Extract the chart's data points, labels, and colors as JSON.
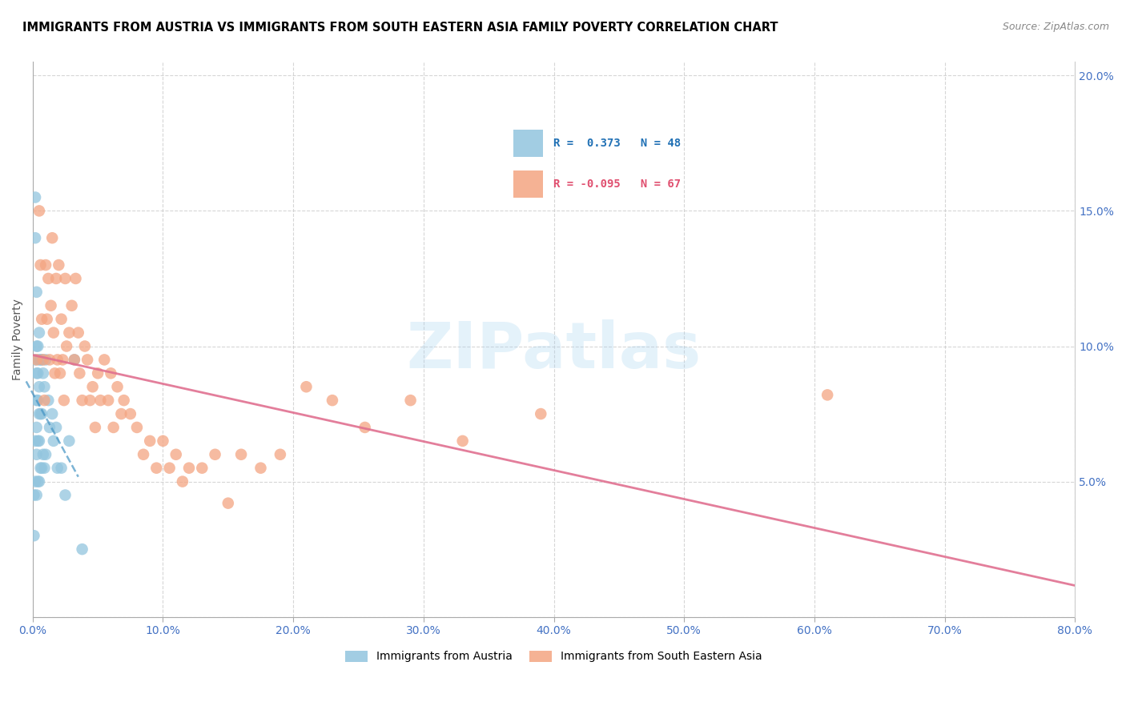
{
  "title": "IMMIGRANTS FROM AUSTRIA VS IMMIGRANTS FROM SOUTH EASTERN ASIA FAMILY POVERTY CORRELATION CHART",
  "source": "Source: ZipAtlas.com",
  "ylabel": "Family Poverty",
  "xlim": [
    0.0,
    0.8
  ],
  "ylim": [
    0.0,
    0.205
  ],
  "austria_color": "#92c5de",
  "austria_line_color": "#4393c3",
  "sea_color": "#f4a582",
  "sea_line_color": "#d6604d",
  "austria_R": 0.373,
  "austria_N": 48,
  "sea_R": -0.095,
  "sea_N": 67,
  "legend_label_austria": "Immigrants from Austria",
  "legend_label_sea": "Immigrants from South Eastern Asia",
  "austria_x": [
    0.001,
    0.001,
    0.002,
    0.002,
    0.002,
    0.002,
    0.002,
    0.003,
    0.003,
    0.003,
    0.003,
    0.003,
    0.003,
    0.003,
    0.004,
    0.004,
    0.004,
    0.004,
    0.004,
    0.005,
    0.005,
    0.005,
    0.005,
    0.005,
    0.005,
    0.006,
    0.006,
    0.006,
    0.007,
    0.007,
    0.007,
    0.008,
    0.008,
    0.009,
    0.009,
    0.01,
    0.01,
    0.012,
    0.013,
    0.015,
    0.016,
    0.018,
    0.019,
    0.022,
    0.025,
    0.028,
    0.032,
    0.038
  ],
  "austria_y": [
    0.045,
    0.03,
    0.155,
    0.14,
    0.095,
    0.065,
    0.05,
    0.12,
    0.1,
    0.09,
    0.08,
    0.07,
    0.06,
    0.045,
    0.1,
    0.09,
    0.08,
    0.065,
    0.05,
    0.105,
    0.095,
    0.085,
    0.075,
    0.065,
    0.05,
    0.095,
    0.075,
    0.055,
    0.095,
    0.075,
    0.055,
    0.09,
    0.06,
    0.085,
    0.055,
    0.095,
    0.06,
    0.08,
    0.07,
    0.075,
    0.065,
    0.07,
    0.055,
    0.055,
    0.045,
    0.065,
    0.095,
    0.025
  ],
  "sea_x": [
    0.003,
    0.005,
    0.006,
    0.007,
    0.008,
    0.009,
    0.01,
    0.011,
    0.012,
    0.013,
    0.014,
    0.015,
    0.016,
    0.017,
    0.018,
    0.019,
    0.02,
    0.021,
    0.022,
    0.023,
    0.024,
    0.025,
    0.026,
    0.028,
    0.03,
    0.032,
    0.033,
    0.035,
    0.036,
    0.038,
    0.04,
    0.042,
    0.044,
    0.046,
    0.048,
    0.05,
    0.052,
    0.055,
    0.058,
    0.06,
    0.062,
    0.065,
    0.068,
    0.07,
    0.075,
    0.08,
    0.085,
    0.09,
    0.095,
    0.1,
    0.105,
    0.11,
    0.115,
    0.12,
    0.13,
    0.14,
    0.15,
    0.16,
    0.175,
    0.19,
    0.21,
    0.23,
    0.255,
    0.29,
    0.33,
    0.39,
    0.61
  ],
  "sea_y": [
    0.095,
    0.15,
    0.13,
    0.11,
    0.095,
    0.08,
    0.13,
    0.11,
    0.125,
    0.095,
    0.115,
    0.14,
    0.105,
    0.09,
    0.125,
    0.095,
    0.13,
    0.09,
    0.11,
    0.095,
    0.08,
    0.125,
    0.1,
    0.105,
    0.115,
    0.095,
    0.125,
    0.105,
    0.09,
    0.08,
    0.1,
    0.095,
    0.08,
    0.085,
    0.07,
    0.09,
    0.08,
    0.095,
    0.08,
    0.09,
    0.07,
    0.085,
    0.075,
    0.08,
    0.075,
    0.07,
    0.06,
    0.065,
    0.055,
    0.065,
    0.055,
    0.06,
    0.05,
    0.055,
    0.055,
    0.06,
    0.042,
    0.06,
    0.055,
    0.06,
    0.085,
    0.08,
    0.07,
    0.08,
    0.065,
    0.075,
    0.082
  ]
}
